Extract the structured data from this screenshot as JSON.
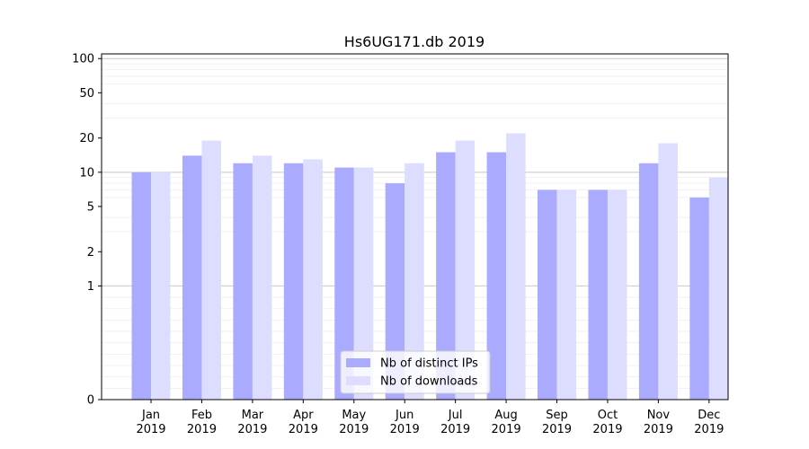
{
  "chart_data": {
    "type": "bar",
    "title": "Hs6UG171.db 2019",
    "xlabel": "",
    "ylabel": "",
    "scale": "symlog",
    "ylim": [
      0,
      110
    ],
    "y_ticks": [
      0,
      1,
      2,
      5,
      10,
      20,
      50,
      100
    ],
    "y_tick_labels": [
      "0",
      "1",
      "2",
      "5",
      "10",
      "20",
      "50",
      "100"
    ],
    "categories": [
      "Jan\n2019",
      "Feb\n2019",
      "Mar\n2019",
      "Apr\n2019",
      "May\n2019",
      "Jun\n2019",
      "Jul\n2019",
      "Aug\n2019",
      "Sep\n2019",
      "Oct\n2019",
      "Nov\n2019",
      "Dec\n2019"
    ],
    "category_lines": [
      [
        "Jan",
        "2019"
      ],
      [
        "Feb",
        "2019"
      ],
      [
        "Mar",
        "2019"
      ],
      [
        "Apr",
        "2019"
      ],
      [
        "May",
        "2019"
      ],
      [
        "Jun",
        "2019"
      ],
      [
        "Jul",
        "2019"
      ],
      [
        "Aug",
        "2019"
      ],
      [
        "Sep",
        "2019"
      ],
      [
        "Oct",
        "2019"
      ],
      [
        "Nov",
        "2019"
      ],
      [
        "Dec",
        "2019"
      ]
    ],
    "series": [
      {
        "name": "Nb of distinct IPs",
        "color": "#aaaaff",
        "values": [
          10,
          14,
          12,
          12,
          11,
          8,
          15,
          15,
          7,
          7,
          12,
          6
        ]
      },
      {
        "name": "Nb of downloads",
        "color": "#ddddff",
        "values": [
          10,
          19,
          14,
          13,
          11,
          12,
          19,
          22,
          7,
          7,
          18,
          9
        ]
      }
    ],
    "legend_position": "lower center",
    "grid": true
  }
}
